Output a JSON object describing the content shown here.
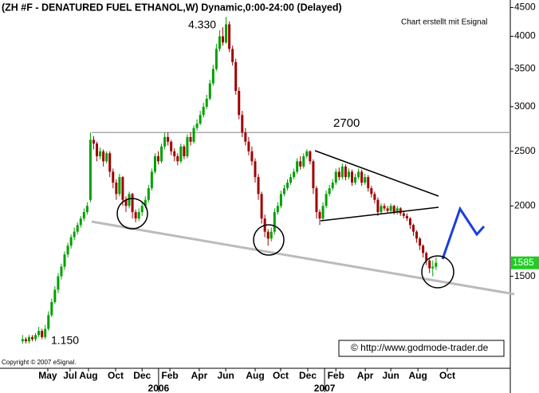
{
  "chart_data": {
    "type": "candlestick",
    "title": "(ZH #F - DENATURED FUEL ETHANOL,W) Dynamic,0:00-24:00 (Delayed)",
    "subtitle": "Chart erstellt mit Esignal",
    "source": "© http://www.godmode-trader.de",
    "copyright": "Copyright © 2007 eSignal.",
    "annotations": [
      "4.330",
      "1.150"
    ],
    "reference_line": 2700,
    "log_scale": true,
    "up_color": "#00a000",
    "down_color": "#a00000",
    "ylim": [
      1030,
      4640
    ],
    "yticks": [
      1500,
      2000,
      2500,
      3000,
      3500,
      4000,
      4500
    ],
    "xlim": [
      -7,
      151
    ],
    "xticks": [
      {
        "value": 7.8,
        "label": "May"
      },
      {
        "value": 14.7,
        "label": "Jul"
      },
      {
        "value": 20.4,
        "label": "Aug"
      },
      {
        "value": 28.8,
        "label": "Oct"
      },
      {
        "value": 37,
        "label": "Dec"
      },
      {
        "value": 45.6,
        "label": "Feb"
      },
      {
        "value": 54.7,
        "label": "Apr"
      },
      {
        "value": 62.9,
        "label": "Jun"
      },
      {
        "value": 72,
        "label": "Aug"
      },
      {
        "value": 79.9,
        "label": "Oct"
      },
      {
        "value": 88.3,
        "label": "Dec"
      },
      {
        "value": 97,
        "label": "Feb"
      },
      {
        "value": 106.1,
        "label": "Apr"
      },
      {
        "value": 114,
        "label": "Jun"
      },
      {
        "value": 122.4,
        "label": "Aug"
      },
      {
        "value": 131.5,
        "label": "Oct"
      }
    ],
    "x_secondary_ticks": [
      {
        "value": 42.1,
        "label": "2006"
      },
      {
        "value": 93.5,
        "label": "2007"
      }
    ],
    "open": [
      1150,
      1160,
      1150,
      1170,
      1160,
      1180,
      1200,
      1170,
      1210,
      1280,
      1350,
      1420,
      1500,
      1560,
      1640,
      1700,
      1760,
      1800,
      1850,
      1900,
      1950,
      2050,
      2620,
      2580,
      2450,
      2500,
      2400,
      2480,
      2300,
      2200,
      2100,
      2250,
      2050,
      2000,
      2100,
      1950,
      1900,
      1950,
      2000,
      2050,
      2150,
      2300,
      2450,
      2400,
      2550,
      2650,
      2600,
      2500,
      2450,
      2400,
      2550,
      2450,
      2650,
      2600,
      2750,
      2800,
      2900,
      3000,
      3100,
      3300,
      3500,
      3800,
      4000,
      3900,
      4200,
      3800,
      3600,
      3200,
      2900,
      2700,
      2600,
      2500,
      2400,
      2250,
      2100,
      1900,
      1800,
      1750,
      1800,
      1950,
      2000,
      2100,
      2150,
      2200,
      2250,
      2300,
      2400,
      2350,
      2450,
      2500,
      2400,
      2150,
      1950,
      1900,
      2000,
      2100,
      2150,
      2200,
      2300,
      2250,
      2350,
      2250,
      2300,
      2200,
      2250,
      2300,
      2200,
      2250,
      2150,
      2100,
      2050,
      1950,
      2000,
      1980,
      1960,
      2000,
      1950,
      1980,
      1940,
      1920,
      1900,
      1850,
      1800,
      1750,
      1700,
      1650,
      1600,
      1550,
      1560
    ],
    "high": [
      1180,
      1170,
      1180,
      1180,
      1190,
      1220,
      1210,
      1230,
      1300,
      1370,
      1440,
      1520,
      1580,
      1660,
      1720,
      1780,
      1830,
      1870,
      1920,
      1980,
      2030,
      2700,
      2660,
      2600,
      2540,
      2520,
      2500,
      2500,
      2330,
      2230,
      2280,
      2260,
      2080,
      2120,
      2110,
      1970,
      1980,
      2030,
      2080,
      2180,
      2330,
      2480,
      2500,
      2580,
      2700,
      2700,
      2620,
      2530,
      2480,
      2580,
      2570,
      2680,
      2700,
      2780,
      2850,
      2950,
      3050,
      3150,
      3350,
      3560,
      3880,
      4100,
      4150,
      4330,
      4250,
      3850,
      3650,
      3250,
      2950,
      2750,
      2650,
      2550,
      2430,
      2280,
      2120,
      1930,
      1820,
      1830,
      1980,
      2030,
      2130,
      2180,
      2230,
      2280,
      2330,
      2430,
      2450,
      2480,
      2520,
      2510,
      2420,
      2170,
      1970,
      2030,
      2130,
      2180,
      2230,
      2330,
      2340,
      2380,
      2370,
      2330,
      2320,
      2280,
      2330,
      2320,
      2280,
      2270,
      2170,
      2120,
      2070,
      2020,
      2020,
      2000,
      2020,
      2010,
      2000,
      1990,
      1960,
      1940,
      1910,
      1860,
      1810,
      1760,
      1710,
      1660,
      1610,
      1600,
      1620
    ],
    "low": [
      1140,
      1140,
      1140,
      1150,
      1150,
      1170,
      1160,
      1160,
      1200,
      1270,
      1340,
      1400,
      1480,
      1540,
      1620,
      1680,
      1740,
      1780,
      1830,
      1880,
      1930,
      2030,
      2520,
      2400,
      2420,
      2350,
      2380,
      2250,
      2150,
      2050,
      2080,
      2000,
      1950,
      1980,
      1900,
      1870,
      1880,
      1920,
      1980,
      2030,
      2130,
      2280,
      2370,
      2380,
      2520,
      2560,
      2460,
      2400,
      2360,
      2380,
      2420,
      2430,
      2560,
      2580,
      2720,
      2780,
      2870,
      2970,
      3080,
      3270,
      3470,
      3760,
      3850,
      3880,
      3750,
      3550,
      3150,
      2850,
      2650,
      2560,
      2460,
      2360,
      2200,
      2050,
      1860,
      1760,
      1700,
      1730,
      1780,
      1930,
      1980,
      2080,
      2130,
      2180,
      2230,
      2280,
      2320,
      2330,
      2430,
      2370,
      2100,
      1900,
      1850,
      1880,
      1980,
      2080,
      2130,
      2180,
      2220,
      2230,
      2220,
      2230,
      2170,
      2180,
      2230,
      2170,
      2180,
      2120,
      2070,
      2020,
      1920,
      1930,
      1960,
      1940,
      1940,
      1930,
      1930,
      1920,
      1900,
      1880,
      1820,
      1770,
      1720,
      1670,
      1620,
      1570,
      1520,
      1500,
      1540
    ],
    "close": [
      1160,
      1150,
      1170,
      1160,
      1180,
      1200,
      1170,
      1210,
      1280,
      1350,
      1420,
      1500,
      1560,
      1640,
      1700,
      1760,
      1800,
      1850,
      1900,
      1950,
      2000,
      2620,
      2580,
      2450,
      2500,
      2400,
      2480,
      2300,
      2200,
      2100,
      2250,
      2050,
      2000,
      2100,
      1950,
      1900,
      1950,
      2000,
      2050,
      2150,
      2300,
      2450,
      2400,
      2550,
      2650,
      2600,
      2500,
      2450,
      2400,
      2550,
      2450,
      2650,
      2600,
      2750,
      2800,
      2900,
      3000,
      3100,
      3300,
      3500,
      3800,
      4000,
      3900,
      4200,
      3800,
      3600,
      3200,
      2900,
      2700,
      2600,
      2500,
      2400,
      2250,
      2100,
      1900,
      1800,
      1750,
      1800,
      1950,
      2000,
      2100,
      2150,
      2200,
      2250,
      2300,
      2400,
      2350,
      2450,
      2500,
      2400,
      2150,
      1950,
      1900,
      2000,
      2100,
      2150,
      2200,
      2300,
      2250,
      2350,
      2250,
      2300,
      2200,
      2250,
      2300,
      2200,
      2250,
      2150,
      2100,
      2050,
      1950,
      2000,
      1980,
      1960,
      2000,
      1950,
      1980,
      1940,
      1920,
      1900,
      1850,
      1800,
      1750,
      1700,
      1650,
      1600,
      1550,
      1560,
      1585
    ]
  }
}
